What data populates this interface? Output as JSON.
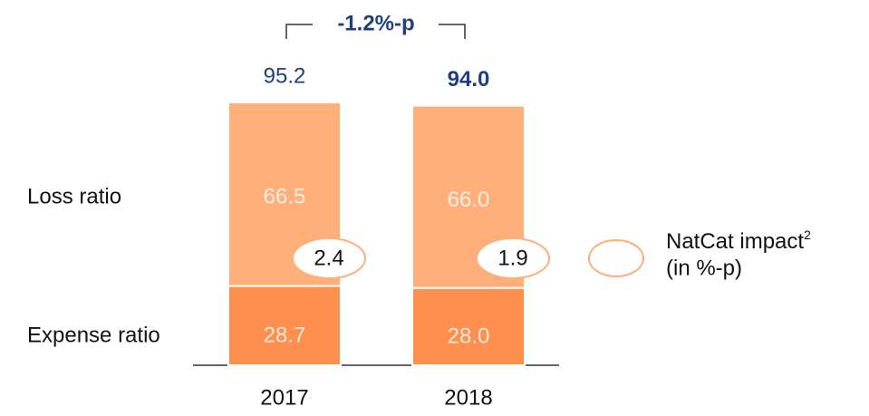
{
  "chart_data": {
    "type": "stacked_bar",
    "annotation": "-1.2%-p",
    "categories": [
      "2017",
      "2018"
    ],
    "series": [
      {
        "name": "Expense ratio",
        "color": "#ff8f4f",
        "values": [
          28.7,
          28.0
        ],
        "value_labels": [
          "28.7",
          "28.0"
        ]
      },
      {
        "name": "Loss ratio",
        "color": "#ffb07a",
        "values": [
          66.5,
          66.0
        ],
        "value_labels": [
          "66.5",
          "66.0"
        ]
      }
    ],
    "totals": [
      95.2,
      94.0
    ],
    "total_labels": [
      "95.2",
      "94.0"
    ],
    "natcat": {
      "name": "NatCat impact",
      "superscript": "2",
      "unit": "(in %-p)",
      "values": [
        2.4,
        1.9
      ],
      "color": "#ffb07a"
    }
  }
}
